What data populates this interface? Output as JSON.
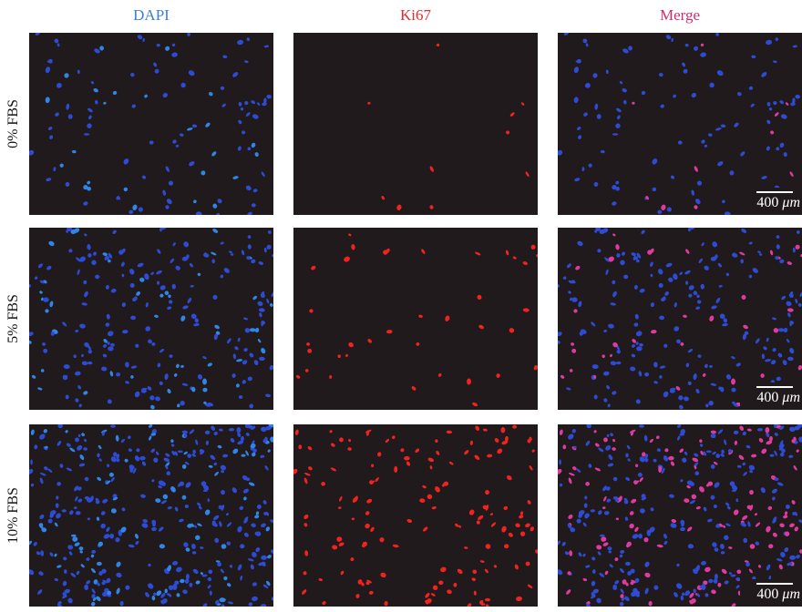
{
  "columns": [
    {
      "label": "DAPI",
      "color": "#3d7fd1"
    },
    {
      "label": "Ki67",
      "color": "#e8282b"
    },
    {
      "label": "Merge",
      "color": "#d02b6f"
    }
  ],
  "rows": [
    {
      "label": "0% FBS",
      "dapi_count": 110,
      "ki67_count": 10
    },
    {
      "label": "5% FBS",
      "dapi_count": 220,
      "ki67_count": 40
    },
    {
      "label": "10% FBS",
      "dapi_count": 380,
      "ki67_count": 180
    }
  ],
  "scale_bar": {
    "value": "400",
    "unit": "μm"
  },
  "colors": {
    "background": "#201a1c",
    "dapi_nucleus": "#2e4bd6",
    "dapi_bright": "#2f86e8",
    "ki67_nucleus": "#f2231e",
    "merge_overlap": "#e03aa0"
  }
}
